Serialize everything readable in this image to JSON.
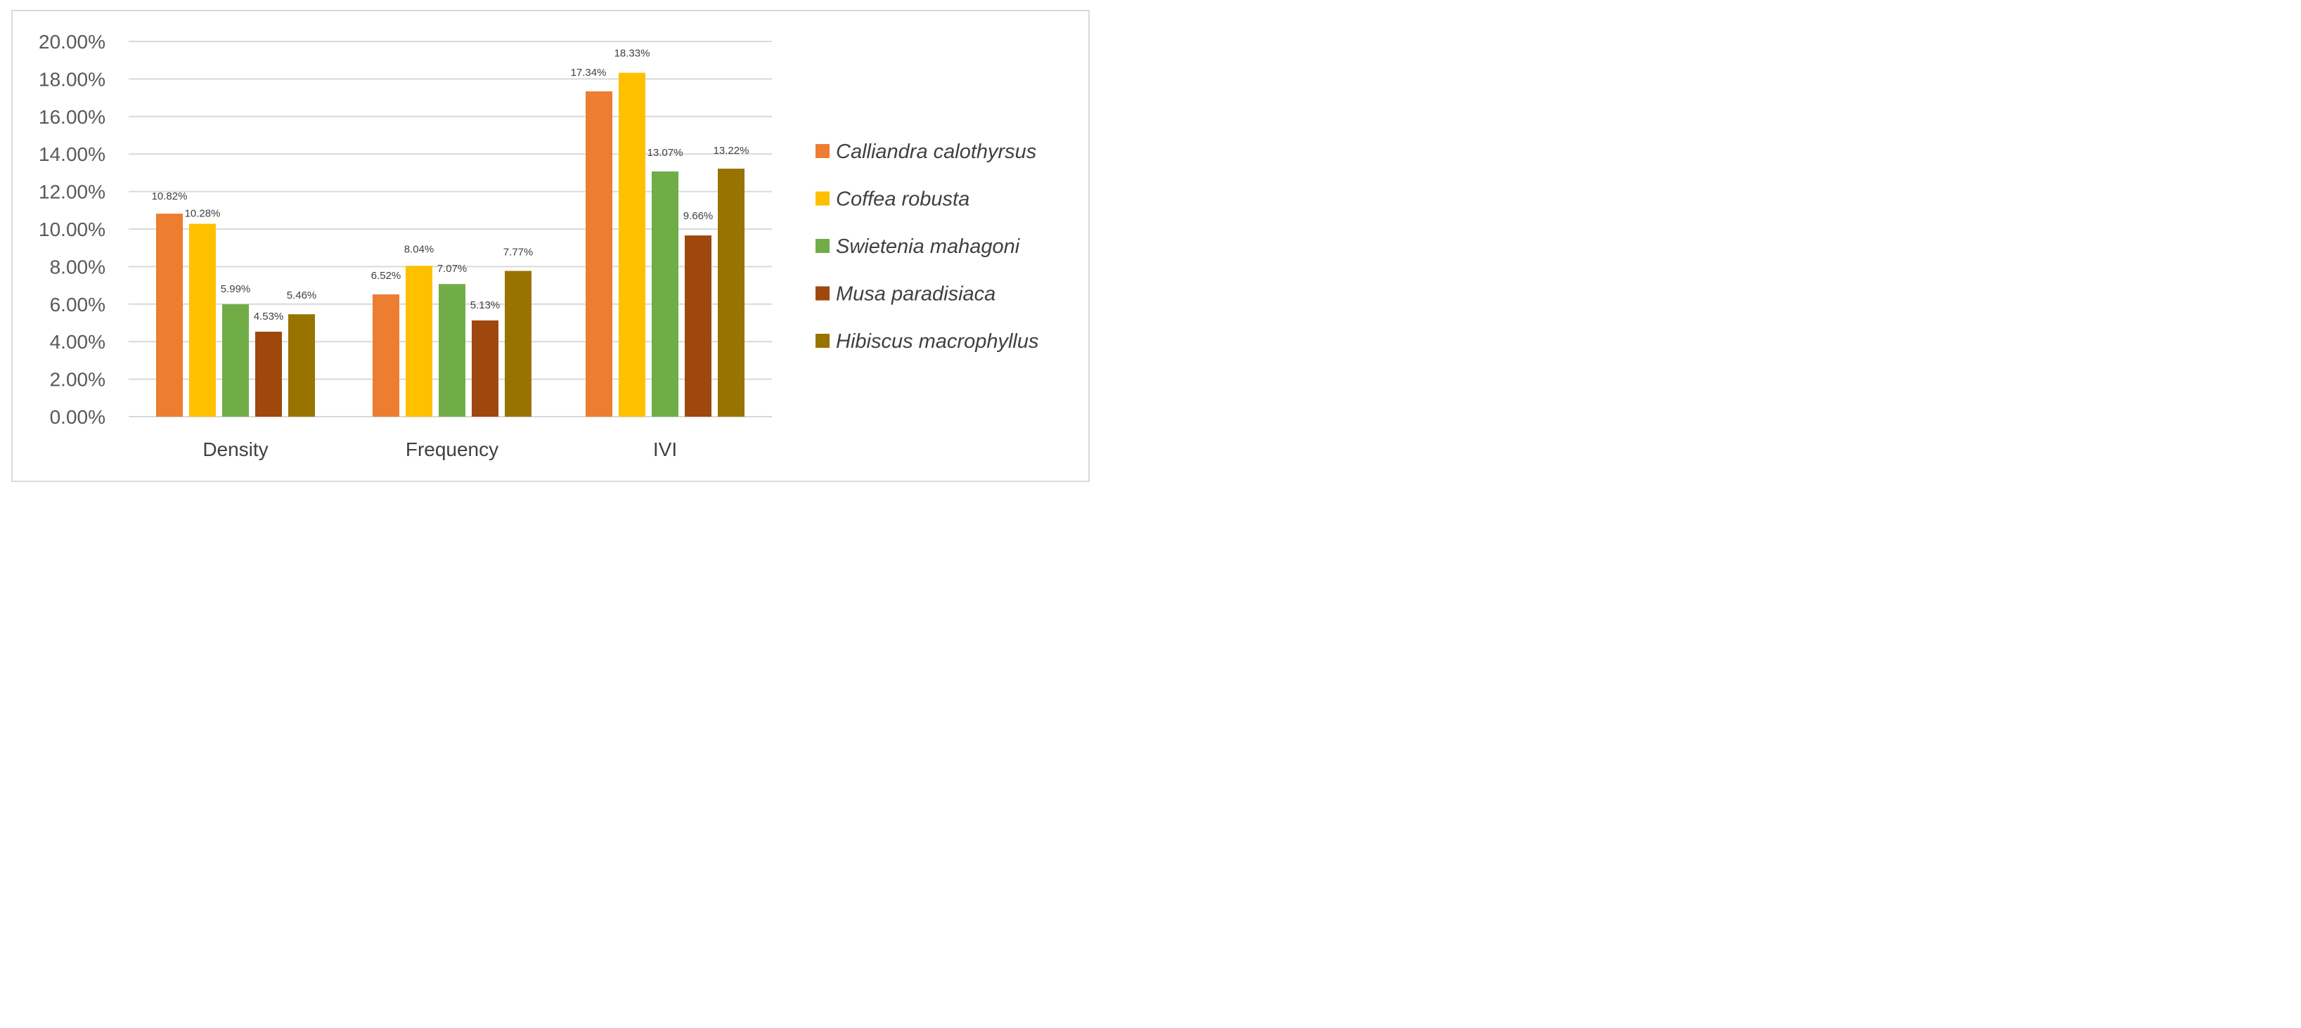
{
  "chart_data": {
    "type": "bar",
    "title": "",
    "xlabel": "",
    "ylabel": "",
    "categories": [
      "Density",
      "Frequency",
      "IVI"
    ],
    "ylim": [
      0,
      20
    ],
    "ytick_step": 2,
    "ytick_labels": [
      "0.00%",
      "2.00%",
      "4.00%",
      "6.00%",
      "8.00%",
      "10.00%",
      "12.00%",
      "14.00%",
      "16.00%",
      "18.00%",
      "20.00%"
    ],
    "grid": true,
    "legend_position": "right",
    "series": [
      {
        "name": "Calliandra calothyrsus",
        "color": "#ED7D31",
        "values": [
          10.82,
          6.52,
          17.34
        ],
        "labels": [
          "10.82%",
          "6.52%",
          "17.34%"
        ]
      },
      {
        "name": "Coffea robusta",
        "color": "#FFC000",
        "values": [
          10.28,
          8.04,
          18.33
        ],
        "labels": [
          "10.28%",
          "8.04%",
          "18.33%"
        ]
      },
      {
        "name": "Swietenia mahagoni",
        "color": "#70AD47",
        "values": [
          5.99,
          7.07,
          13.07
        ],
        "labels": [
          "5.99%",
          "7.07%",
          "13.07%"
        ]
      },
      {
        "name": "Musa paradisiaca",
        "color": "#9E480E",
        "values": [
          4.53,
          5.13,
          9.66
        ],
        "labels": [
          "4.53%",
          "5.13%",
          "9.66%"
        ]
      },
      {
        "name": "Hibiscus macrophyllus",
        "color": "#997300",
        "values": [
          5.46,
          7.77,
          13.22
        ],
        "labels": [
          "5.46%",
          "7.77%",
          "13.22%"
        ]
      }
    ]
  }
}
